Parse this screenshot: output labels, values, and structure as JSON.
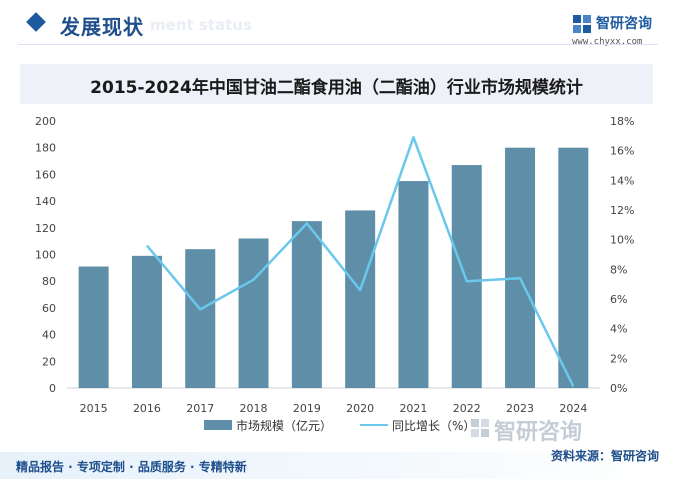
{
  "header": {
    "title": "发展现状",
    "title_en": "ment status"
  },
  "brand": {
    "name": "智研咨询",
    "url": "www.chyxx.com",
    "footer_name": "智研咨询"
  },
  "footer": {
    "left_text": "精品报告 · 专项定制 · 品质服务 · 专精特新",
    "source_text": "资料来源：智研咨询"
  },
  "colors": {
    "bar": "#5f8fa8",
    "line": "#6ac8ec",
    "accent": "#1e5aa0"
  },
  "chart_data": {
    "type": "bar",
    "title": "2015-2024年中国甘油二酯食用油（二酯油）行业市场规模统计",
    "categories": [
      "2015",
      "2016",
      "2017",
      "2018",
      "2019",
      "2020",
      "2021",
      "2022",
      "2023",
      "2024"
    ],
    "series": [
      {
        "name": "市场规模（亿元）",
        "type": "bar",
        "axis": "left",
        "values": [
          91,
          99,
          104,
          112,
          125,
          133,
          155,
          167,
          180,
          180
        ]
      },
      {
        "name": "同比增长（%）",
        "type": "line",
        "axis": "right",
        "values": [
          null,
          9.6,
          5.3,
          7.3,
          11.1,
          6.6,
          16.9,
          7.2,
          7.4,
          0.1
        ]
      }
    ],
    "y_left": {
      "min": 0,
      "max": 200,
      "step": 20,
      "ticks": [
        "0",
        "20",
        "40",
        "60",
        "80",
        "100",
        "120",
        "140",
        "160",
        "180",
        "200"
      ]
    },
    "y_right": {
      "min": 0,
      "max": 18,
      "step": 2,
      "ticks": [
        "0%",
        "2%",
        "4%",
        "6%",
        "8%",
        "10%",
        "12%",
        "14%",
        "16%",
        "18%"
      ]
    },
    "grid": false,
    "legend": "bottom-center"
  }
}
